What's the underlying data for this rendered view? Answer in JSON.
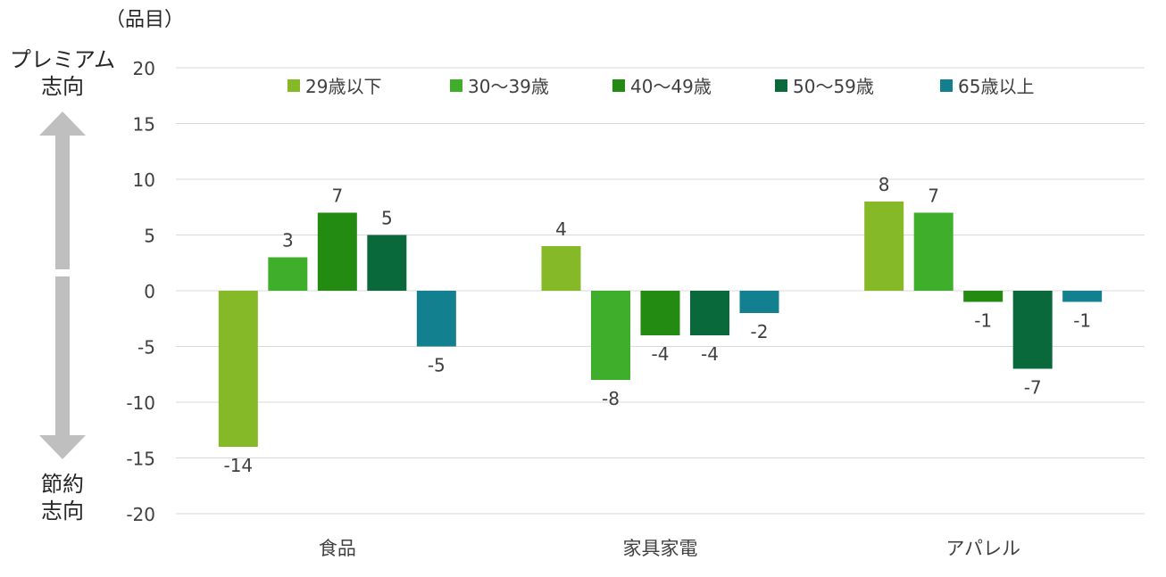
{
  "chart_data": {
    "type": "bar",
    "unit_label": "（品目）",
    "axis_annotation_top": [
      "プレミアム",
      "志向"
    ],
    "axis_annotation_bottom": [
      "節約",
      "志向"
    ],
    "categories": [
      "食品",
      "家具家電",
      "アパレル"
    ],
    "series": [
      {
        "name": "29歳以下",
        "color": "#86b928",
        "values": [
          -14,
          4,
          8
        ]
      },
      {
        "name": "30〜39歳",
        "color": "#3fae2a",
        "values": [
          3,
          -8,
          7
        ]
      },
      {
        "name": "40〜49歳",
        "color": "#238a12",
        "values": [
          7,
          -4,
          -1
        ]
      },
      {
        "name": "50〜59歳",
        "color": "#0a693a",
        "values": [
          5,
          -4,
          -7
        ]
      },
      {
        "name": "65歳以上",
        "color": "#12808f",
        "values": [
          -5,
          -2,
          -1
        ]
      }
    ],
    "ylim": [
      -20,
      20
    ],
    "yticks": [
      20,
      15,
      10,
      5,
      0,
      -5,
      -10,
      -15,
      -20
    ],
    "grid": true,
    "legend_position": "top"
  }
}
